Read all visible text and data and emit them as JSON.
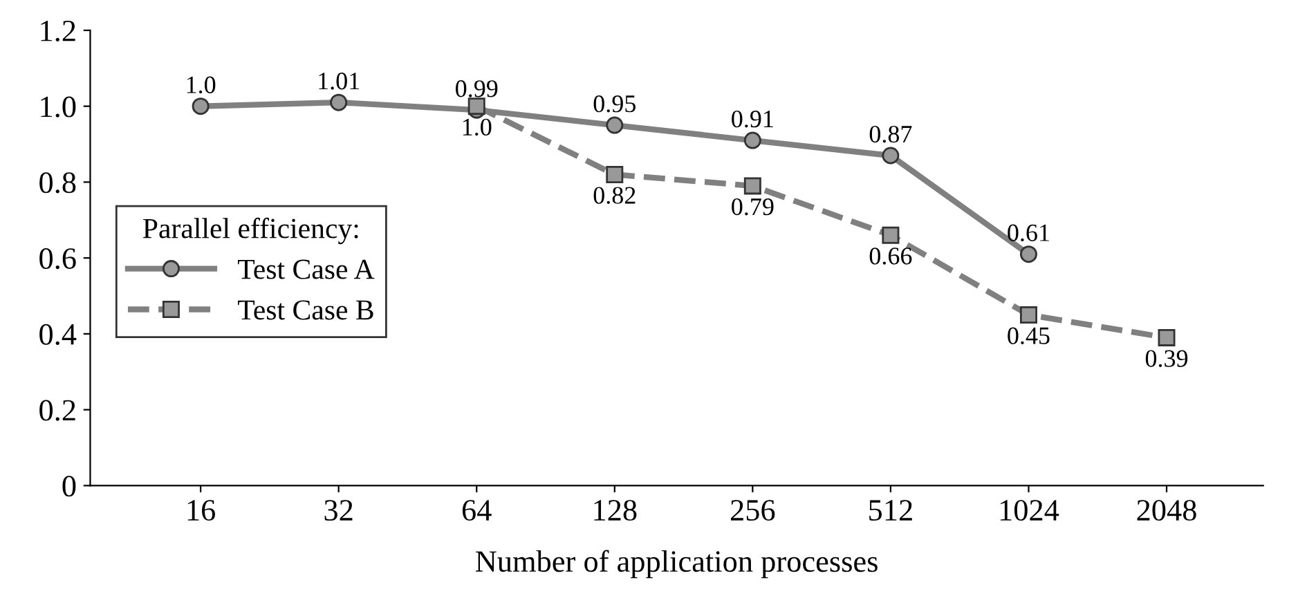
{
  "chart_data": {
    "type": "line",
    "xlabel": "Number of application processes",
    "categories": [
      "16",
      "32",
      "64",
      "128",
      "256",
      "512",
      "1024",
      "2048"
    ],
    "ylim": [
      0,
      1.2
    ],
    "yticks": [
      {
        "value": 0,
        "label": "0"
      },
      0.2,
      0.4,
      0.6,
      0.8,
      {
        "value": 1.0,
        "label": "1.0"
      },
      1.2
    ],
    "legend": "left",
    "legend_title": "Parallel efficiency:",
    "grid": false,
    "series": [
      {
        "name": "Test Case A",
        "color": "#808080",
        "marker": "circle",
        "line_style": "solid",
        "values": [
          1.0,
          1.01,
          0.99,
          0.95,
          0.91,
          0.87,
          0.61,
          null
        ],
        "value_labels": [
          "1.0",
          "1.01",
          "0.99",
          "0.95",
          "0.91",
          "0.87",
          "0.61",
          null
        ]
      },
      {
        "name": "Test Case B",
        "color": "#808080",
        "marker": "square",
        "line_style": "dashed",
        "values": [
          null,
          null,
          1.0,
          0.82,
          0.79,
          0.66,
          0.45,
          0.39
        ],
        "value_labels": [
          null,
          null,
          "1.0",
          "0.82",
          "0.79",
          "0.66",
          "0.45",
          "0.39"
        ]
      }
    ]
  }
}
